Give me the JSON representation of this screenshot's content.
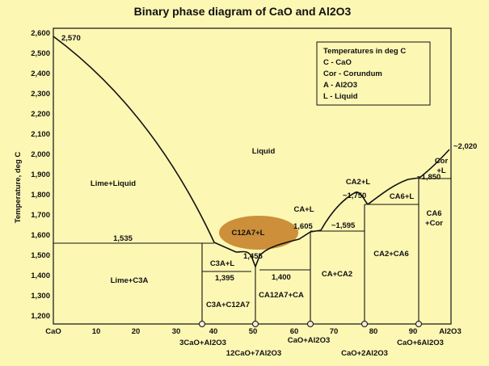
{
  "title": "Binary phase diagram of CaO and Al2O3",
  "axes": {
    "ylabel": "Temperature, deg C",
    "y_ticks": [
      "2,600",
      "2,500",
      "2,400",
      "2,300",
      "2,200",
      "2,100",
      "2,000",
      "1,900",
      "1,800",
      "1,700",
      "1,600",
      "1,500",
      "1,400",
      "1,300",
      "1,200"
    ],
    "x_ticks": [
      "CaO",
      "10",
      "20",
      "30",
      "40",
      "50",
      "60",
      "70",
      "80",
      "90",
      "Al2O3"
    ]
  },
  "legend": {
    "title": "Temperatures in deg C",
    "items": [
      "C - CaO",
      "Cor - Corundum",
      "A - Al2O3",
      "L - Liquid"
    ]
  },
  "regions": {
    "liquid": "Liquid",
    "lime_liquid": "Lime+Liquid",
    "lime_c3a": "Lime+C3A",
    "c3a_l": "C3A+L",
    "c3a_c12a7": "C3A+C12A7",
    "c12a7_l": "C12A7+L",
    "ca12a7_ca": "CA12A7+CA",
    "ca_l": "CA+L",
    "ca_ca2": "CA+CA2",
    "ca2_l": "CA2+L",
    "ca2_ca6": "CA2+CA6",
    "ca6_l": "CA6+L",
    "ca6_cor": "CA6\n+Cor",
    "cor_l": "Cor\n+L"
  },
  "temperature_labels": {
    "t2570": "2,570",
    "t2020": "~2,020",
    "t1850": "~1,850",
    "t1750": "~1,750",
    "t1595": "~1,595",
    "t1605": "1,605",
    "t1535": "1,535",
    "t1455": "1,455",
    "t1395": "1,395",
    "t1400": "1,400"
  },
  "compounds": {
    "c3a": "3CaO+Al2O3",
    "c12a7": "12CaO+7Al2O3",
    "ca": "CaO+Al2O3",
    "ca2": "CaO+2Al2O3",
    "ca6": "CaO+6Al2O3"
  },
  "colors": {
    "background": "#fdf7b4",
    "plot_area": "#fdf7b4",
    "highlight": "#c8832b",
    "marker_fill": "#f3ead7"
  }
}
